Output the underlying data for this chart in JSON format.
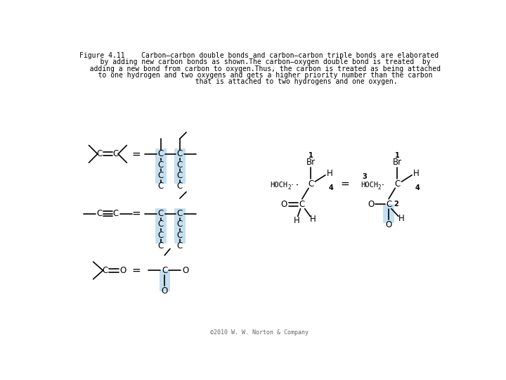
{
  "title_lines": [
    "Figure 4.11    Carbon–carbon double bonds and carbon–carbon triple bonds are elaborated",
    "   by adding new carbon bonds as shown.The carbon–oxygen double bond is treated  by",
    "   adding a new bond from carbon to oxygen.Thus, the carbon is treated as being attached",
    "   to one hydrogen and two oxygens and gets a higher priority number than the carbon",
    "                  that is attached to two hydrogens and one oxygen."
  ],
  "copyright": "©2010 W. W. Norton & Company",
  "highlight_color": "#c5dff0",
  "bg_color": "#ffffff",
  "bond_color": "#000000",
  "text_color": "#000000"
}
